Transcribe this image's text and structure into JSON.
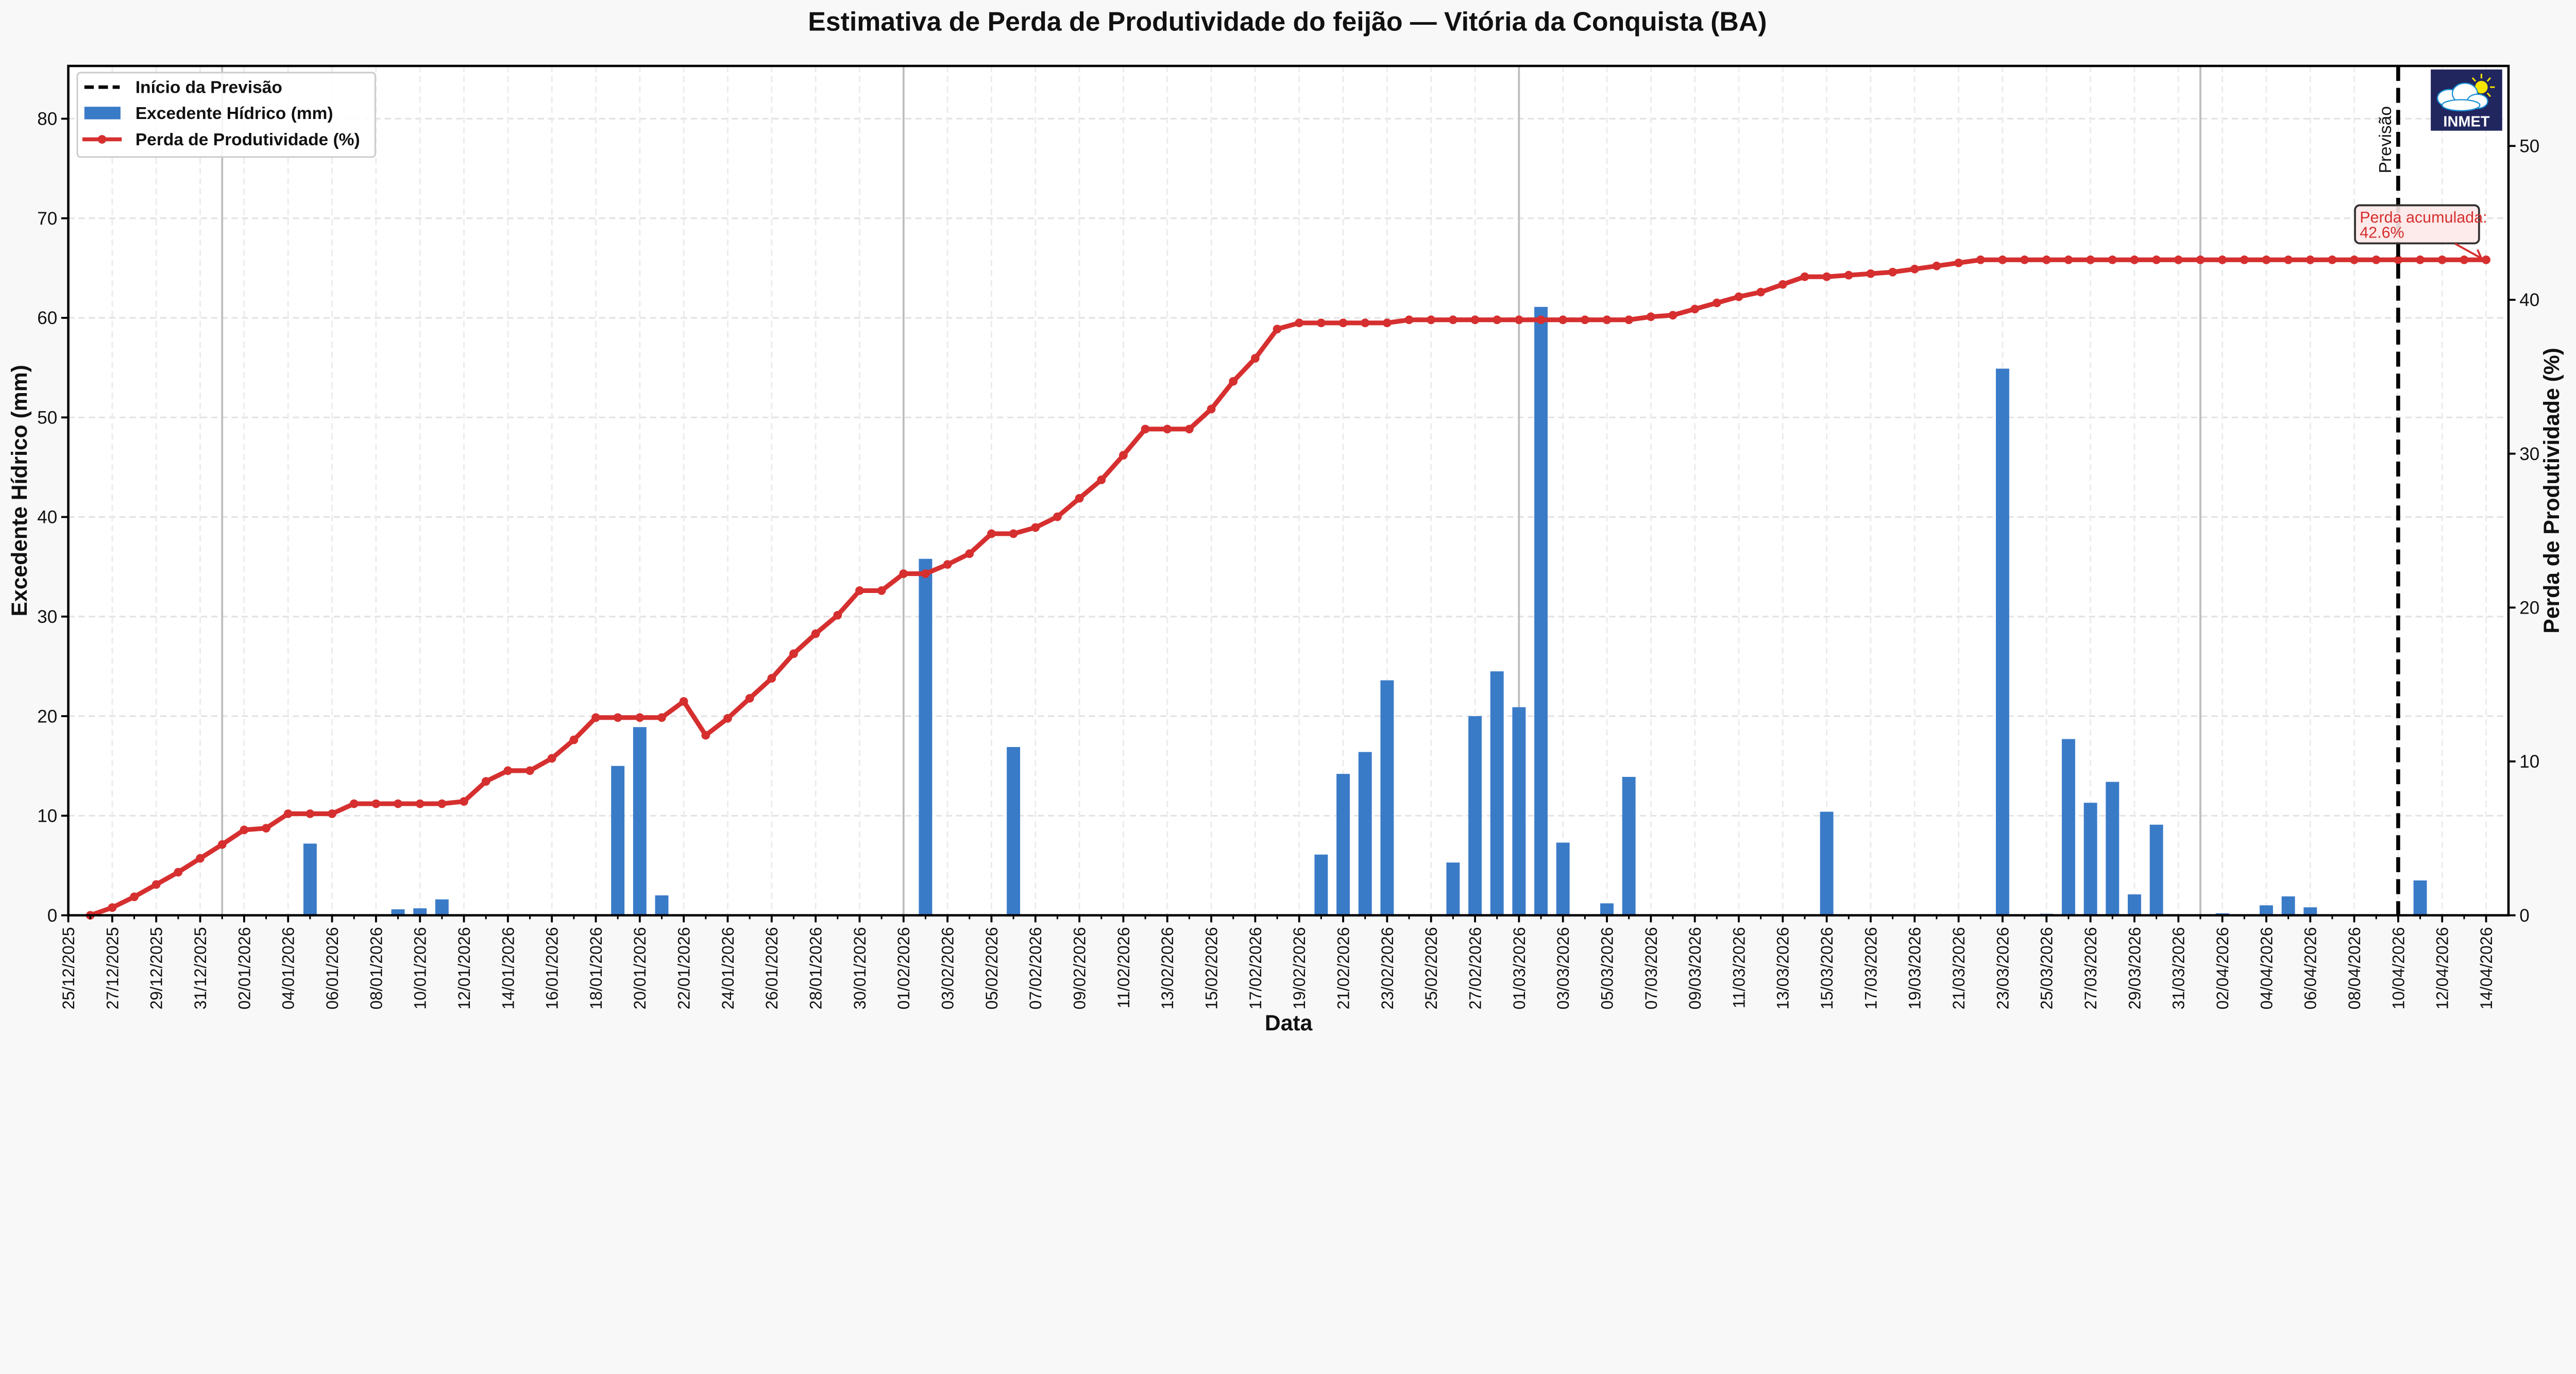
{
  "chart_data": {
    "type": "bar+line",
    "title": "Estimativa de Perda de Produtividade do feijão — Vitória da Conquista (BA)",
    "xlabel": "Data",
    "ylabel_left": "Excedente Hídrico (mm)",
    "ylabel_right": "Perda de Produtividade (%)",
    "ylim_left": [
      0,
      85.3
    ],
    "ylim_right": [
      0,
      55.2
    ],
    "yticks_left": [
      0,
      10,
      20,
      30,
      40,
      50,
      60,
      70,
      80
    ],
    "yticks_right": [
      0,
      10,
      20,
      30,
      40,
      50
    ],
    "grid": true,
    "legend_placement": "top-left",
    "legend": [
      {
        "label": "Início da Previsão",
        "kind": "dashed-line",
        "color": "#000000"
      },
      {
        "label": "Excedente Hídrico (mm)",
        "kind": "bar",
        "color": "#3a7bc8"
      },
      {
        "label": "Perda de Produtividade (%)",
        "kind": "line-marker",
        "color": "#d62f2f"
      }
    ],
    "x_start": "26/12/2025",
    "x_end": "14/04/2026",
    "xtick_labels": [
      "25/12/2025",
      "27/12/2025",
      "29/12/2025",
      "31/12/2025",
      "02/01/2026",
      "04/01/2026",
      "06/01/2026",
      "08/01/2026",
      "10/01/2026",
      "12/01/2026",
      "14/01/2026",
      "16/01/2026",
      "18/01/2026",
      "20/01/2026",
      "22/01/2026",
      "24/01/2026",
      "26/01/2026",
      "28/01/2026",
      "30/01/2026",
      "01/02/2026",
      "03/02/2026",
      "05/02/2026",
      "07/02/2026",
      "09/02/2026",
      "11/02/2026",
      "13/02/2026",
      "15/02/2026",
      "17/02/2026",
      "19/02/2026",
      "21/02/2026",
      "23/02/2026",
      "25/02/2026",
      "27/02/2026",
      "01/03/2026",
      "03/03/2026",
      "05/03/2026",
      "07/03/2026",
      "09/03/2026",
      "11/03/2026",
      "13/03/2026",
      "15/03/2026",
      "17/03/2026",
      "19/03/2026",
      "21/03/2026",
      "23/03/2026",
      "25/03/2026",
      "27/03/2026",
      "29/03/2026",
      "31/03/2026",
      "02/04/2026",
      "04/04/2026",
      "06/04/2026",
      "08/04/2026",
      "10/04/2026",
      "12/04/2026",
      "14/04/2026"
    ],
    "series": [
      {
        "name": "Excedente Hídrico (mm)",
        "axis": "left",
        "type": "bar",
        "color": "#3a7bc8",
        "values": [
          0,
          0,
          0,
          0,
          0,
          0,
          0,
          0,
          0,
          0,
          7.2,
          0,
          0,
          0,
          0.6,
          0.7,
          1.6,
          0,
          0,
          0,
          0,
          0,
          0,
          0,
          15.0,
          18.9,
          2.0,
          0,
          0,
          0,
          0,
          0,
          0,
          0,
          0,
          0,
          0,
          0,
          35.8,
          0,
          0,
          0,
          16.9,
          0,
          0,
          0,
          0,
          0,
          0,
          0,
          0,
          0,
          0,
          0,
          0,
          0,
          6.1,
          14.2,
          16.4,
          23.6,
          0,
          0,
          5.3,
          20.0,
          24.5,
          20.9,
          61.1,
          7.3,
          0,
          1.2,
          13.9,
          0,
          0,
          0,
          0,
          0,
          0,
          0,
          0,
          10.4,
          0,
          0,
          0,
          0,
          0,
          0,
          0,
          54.9,
          0,
          0.15,
          17.7,
          11.3,
          13.4,
          2.1,
          9.1,
          0,
          0,
          0.2,
          0,
          1.0,
          1.9,
          0.8,
          0,
          0,
          0,
          0,
          3.5,
          0,
          0,
          0
        ]
      },
      {
        "name": "Perda de Produtividade (%)",
        "axis": "right",
        "type": "line",
        "color": "#d62f2f",
        "values": [
          0,
          0.5,
          1.2,
          2.0,
          2.8,
          3.7,
          4.6,
          5.55,
          5.66,
          6.6,
          6.6,
          6.6,
          7.25,
          7.25,
          7.25,
          7.25,
          7.25,
          7.4,
          8.7,
          9.4,
          9.4,
          10.2,
          11.4,
          12.85,
          12.85,
          12.85,
          12.85,
          13.9,
          11.7,
          12.8,
          14.1,
          15.4,
          17.0,
          18.3,
          19.5,
          21.1,
          21.1,
          22.2,
          22.2,
          22.8,
          23.5,
          24.8,
          24.8,
          25.2,
          25.9,
          27.1,
          28.3,
          29.9,
          31.6,
          31.6,
          31.6,
          32.9,
          34.7,
          36.2,
          38.1,
          38.5,
          38.5,
          38.5,
          38.5,
          38.5,
          38.7,
          38.7,
          38.7,
          38.7,
          38.7,
          38.7,
          38.7,
          38.7,
          38.7,
          38.7,
          38.7,
          38.9,
          39.0,
          39.4,
          39.8,
          40.2,
          40.5,
          41.0,
          41.5,
          41.5,
          41.6,
          41.7,
          41.8,
          42.0,
          42.2,
          42.4,
          42.6,
          42.6,
          42.6,
          42.6,
          42.6,
          42.6,
          42.6,
          42.6,
          42.6,
          42.6,
          42.6,
          42.6,
          42.6,
          42.6,
          42.6,
          42.6,
          42.6,
          42.6,
          42.6,
          42.6,
          42.6,
          42.6,
          42.6,
          42.6
        ]
      }
    ],
    "month_boundaries": [
      "01/01/2026",
      "01/02/2026",
      "01/03/2026",
      "01/04/2026"
    ],
    "forecast_start": "10/04/2026",
    "forecast_label": "Previsão",
    "annotation": {
      "line1": "Perda acumulada:",
      "line2": "42.6%"
    },
    "logo_text": "INMET"
  }
}
